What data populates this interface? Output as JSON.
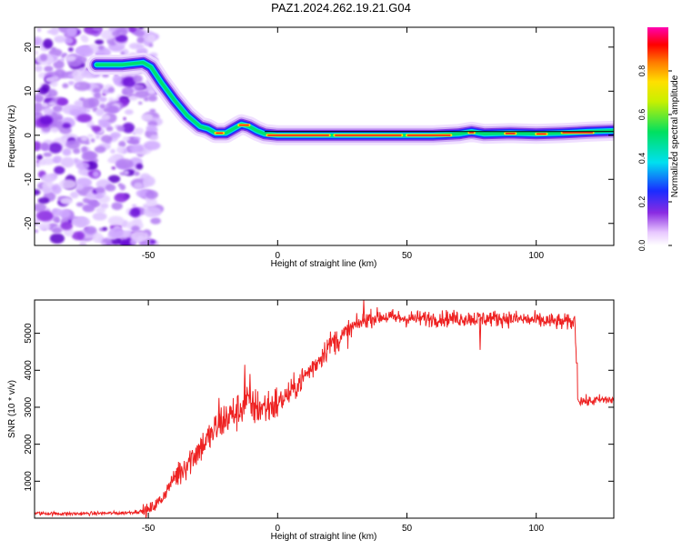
{
  "page_title": "PAZ1.2024.262.19.21.G04",
  "colors": {
    "axis": "#000000",
    "snr_line": "#ee2222",
    "background": "#ffffff"
  },
  "chart_data": [
    {
      "type": "heatmap",
      "title": "PAZ1.2024.262.19.21.G04",
      "xlabel": "Height of straight line (km)",
      "ylabel": "Frequency (Hz)",
      "xlim": [
        -94,
        130
      ],
      "ylim": [
        -25,
        24.5
      ],
      "x_ticks": [
        -50,
        0,
        50,
        100
      ],
      "y_ticks": [
        -20,
        -10,
        0,
        10,
        20
      ],
      "grid": false,
      "ridge": {
        "x": [
          -70,
          -60,
          -52,
          -49,
          -45,
          -40,
          -35,
          -30,
          -27,
          -24,
          -20,
          -17,
          -14,
          -11,
          -8,
          -5,
          0,
          20,
          40,
          60,
          70,
          75,
          80,
          90,
          100,
          110,
          120,
          130
        ],
        "y": [
          16,
          16,
          16.5,
          15.5,
          12,
          8,
          4.5,
          2,
          1.5,
          0.5,
          0.5,
          1.5,
          2.5,
          2,
          1,
          0.3,
          0,
          0,
          0,
          0,
          0.3,
          0.8,
          0.3,
          0.5,
          0.3,
          0.5,
          0.8,
          1.0
        ]
      },
      "colorbar": {
        "label": "Normalized spectral amplitude",
        "range": [
          0,
          1
        ],
        "ticks": [
          "0.0",
          "0.2",
          "0.4",
          "0.6",
          "0.8"
        ]
      }
    },
    {
      "type": "line",
      "xlabel": "Height of straight line (km)",
      "ylabel": "SNR (10 * v/v)",
      "xlim": [
        -94,
        130
      ],
      "ylim": [
        0,
        5900
      ],
      "x_ticks": [
        -50,
        0,
        50,
        100
      ],
      "y_ticks": [
        1000,
        2000,
        3000,
        4000,
        5000
      ],
      "grid": false,
      "series": [
        {
          "x": [
            -94,
            -80,
            -60,
            -50,
            -45,
            -40,
            -35,
            -30,
            -25,
            -22,
            -20,
            -15,
            -12,
            -10,
            -5,
            0,
            5,
            10,
            15,
            20,
            25,
            30,
            35,
            40,
            50,
            60,
            70,
            80,
            90,
            100,
            110,
            115,
            116,
            120,
            125,
            130
          ],
          "y": [
            130,
            120,
            140,
            200,
            500,
            1100,
            1500,
            1900,
            2300,
            2600,
            2700,
            2900,
            3200,
            3000,
            3000,
            3100,
            3400,
            3800,
            4200,
            4700,
            4900,
            5200,
            5400,
            5450,
            5400,
            5400,
            5400,
            5400,
            5400,
            5350,
            5300,
            5300,
            3200,
            3150,
            3200,
            3200
          ]
        }
      ]
    }
  ]
}
